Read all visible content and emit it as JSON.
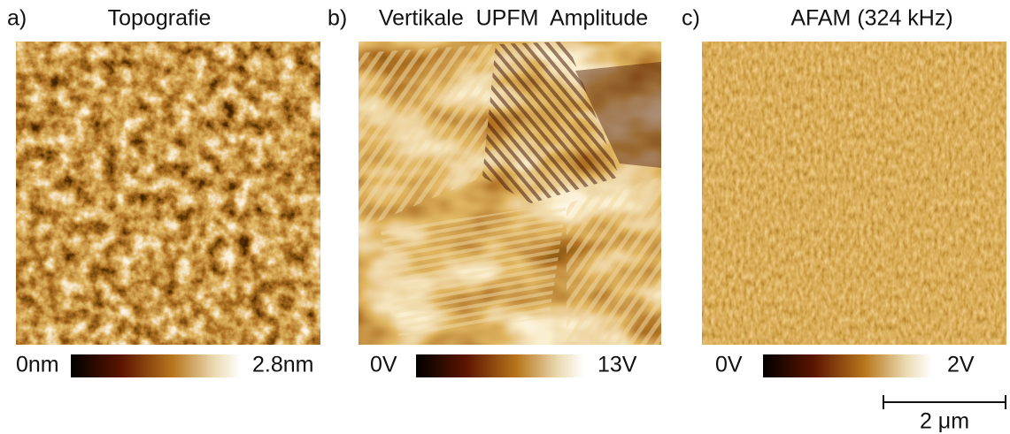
{
  "panels": [
    {
      "label": "a)",
      "title": "Topografie",
      "min": "0nm",
      "max": "2.8nm"
    },
    {
      "label": "b)",
      "title": "Vertikale  UPFM  Amplitude",
      "min": "0V",
      "max": "13V"
    },
    {
      "label": "c)",
      "title": "AFAM (324 kHz)",
      "min": "0V",
      "max": "2V"
    }
  ],
  "scale_bar": {
    "label": "2 μm"
  }
}
